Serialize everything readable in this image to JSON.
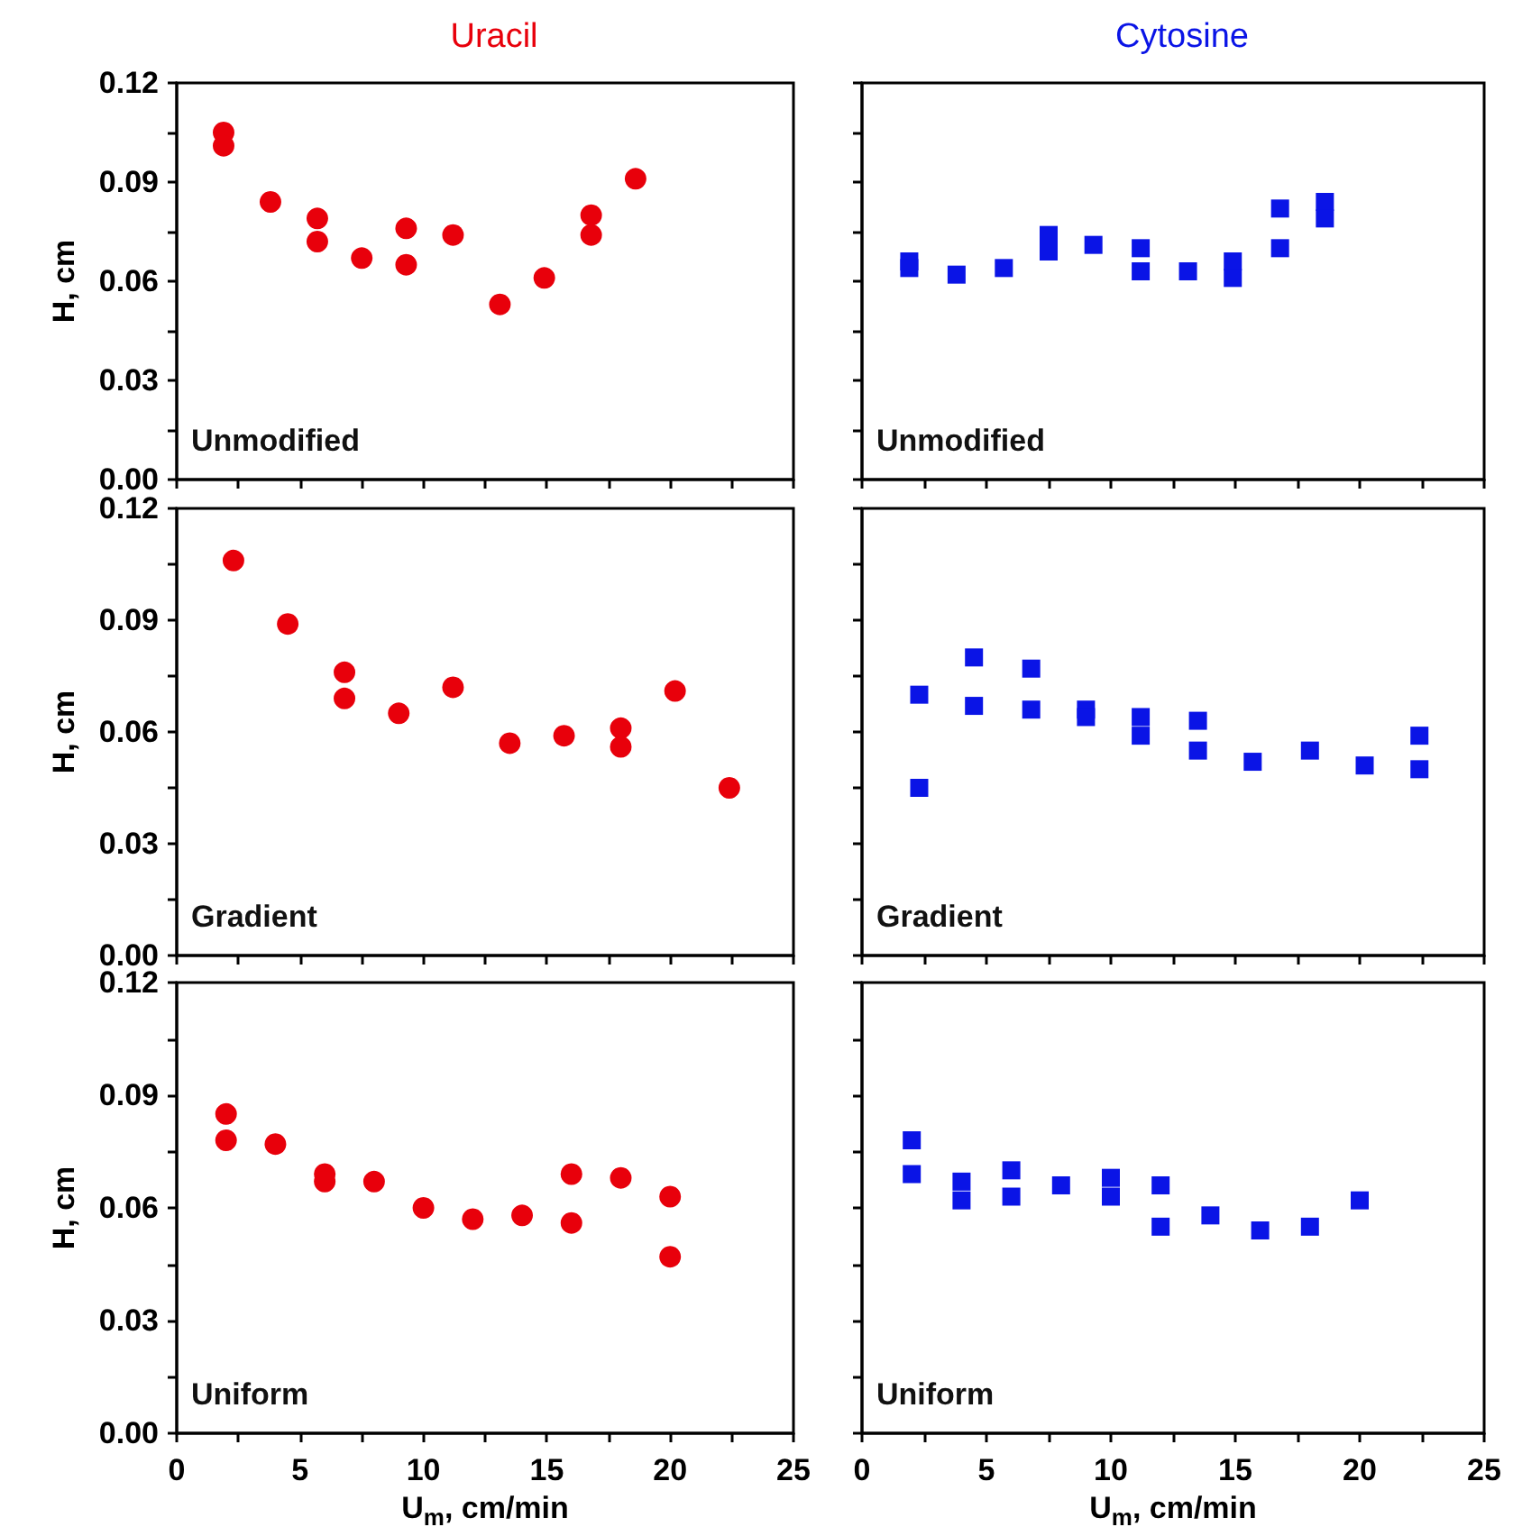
{
  "chart_data": [
    {
      "type": "scatter",
      "title": "Uracil",
      "ylabel": "H, cm",
      "annotations": [
        "Unmodified"
      ],
      "marker": "circle",
      "color": "#e8000b",
      "tick_labels": "y",
      "x": [
        1.9,
        1.9,
        3.8,
        5.7,
        5.7,
        7.5,
        9.3,
        9.3,
        11.2,
        13.1,
        14.9,
        16.8,
        16.8,
        18.6
      ],
      "values": [
        0.105,
        0.101,
        0.084,
        0.079,
        0.072,
        0.067,
        0.076,
        0.065,
        0.074,
        0.053,
        0.061,
        0.08,
        0.074,
        0.091
      ],
      "xlim": [
        0,
        25
      ],
      "ylim": [
        0,
        0.12
      ],
      "xticks": [
        {
          "value": 0,
          "label": null
        },
        {
          "value": 2.5,
          "label": null
        },
        {
          "value": 5,
          "label": null
        },
        {
          "value": 7.5,
          "label": null
        },
        {
          "value": 10,
          "label": null
        },
        {
          "value": 12.5,
          "label": null
        },
        {
          "value": 15,
          "label": null
        },
        {
          "value": 17.5,
          "label": null
        },
        {
          "value": 20,
          "label": null
        },
        {
          "value": 22.5,
          "label": null
        },
        {
          "value": 25,
          "label": null
        }
      ],
      "yticks": [
        {
          "value": 0,
          "label": "0.00"
        },
        {
          "value": 0.015,
          "label": null
        },
        {
          "value": 0.03,
          "label": "0.03"
        },
        {
          "value": 0.045,
          "label": null
        },
        {
          "value": 0.06,
          "label": "0.06"
        },
        {
          "value": 0.075,
          "label": null
        },
        {
          "value": 0.09,
          "label": "0.09"
        },
        {
          "value": 0.105,
          "label": null
        },
        {
          "value": 0.12,
          "label": "0.12"
        }
      ]
    },
    {
      "type": "scatter",
      "title": "Cytosine",
      "annotations": [
        "Unmodified"
      ],
      "marker": "square",
      "color": "#0a14e6",
      "tick_labels": false,
      "x": [
        1.9,
        1.9,
        3.8,
        5.7,
        7.5,
        7.5,
        9.3,
        11.2,
        11.2,
        13.1,
        14.9,
        14.9,
        16.8,
        16.8,
        18.6,
        18.6
      ],
      "values": [
        0.066,
        0.064,
        0.062,
        0.064,
        0.074,
        0.069,
        0.071,
        0.07,
        0.063,
        0.063,
        0.066,
        0.061,
        0.082,
        0.07,
        0.084,
        0.079
      ],
      "xlim": [
        0,
        25
      ],
      "ylim": [
        0,
        0.12
      ],
      "xticks": [
        {
          "value": 0,
          "label": null
        },
        {
          "value": 2.5,
          "label": null
        },
        {
          "value": 5,
          "label": null
        },
        {
          "value": 7.5,
          "label": null
        },
        {
          "value": 10,
          "label": null
        },
        {
          "value": 12.5,
          "label": null
        },
        {
          "value": 15,
          "label": null
        },
        {
          "value": 17.5,
          "label": null
        },
        {
          "value": 20,
          "label": null
        },
        {
          "value": 22.5,
          "label": null
        },
        {
          "value": 25,
          "label": null
        }
      ],
      "yticks": [
        {
          "value": 0,
          "label": null
        },
        {
          "value": 0.015,
          "label": null
        },
        {
          "value": 0.03,
          "label": null
        },
        {
          "value": 0.045,
          "label": null
        },
        {
          "value": 0.06,
          "label": null
        },
        {
          "value": 0.075,
          "label": null
        },
        {
          "value": 0.09,
          "label": null
        },
        {
          "value": 0.105,
          "label": null
        },
        {
          "value": 0.12,
          "label": null
        }
      ]
    },
    {
      "type": "scatter",
      "ylabel": "H, cm",
      "annotations": [
        "Gradient"
      ],
      "marker": "circle",
      "color": "#e8000b",
      "tick_labels": "y",
      "x": [
        2.3,
        4.5,
        6.8,
        6.8,
        9.0,
        11.2,
        13.5,
        15.7,
        18.0,
        18.0,
        20.2,
        22.4
      ],
      "values": [
        0.106,
        0.089,
        0.076,
        0.069,
        0.065,
        0.072,
        0.057,
        0.059,
        0.061,
        0.056,
        0.071,
        0.045
      ],
      "xlim": [
        0,
        25
      ],
      "ylim": [
        0,
        0.12
      ],
      "xticks": [
        {
          "value": 0,
          "label": null
        },
        {
          "value": 2.5,
          "label": null
        },
        {
          "value": 5,
          "label": null
        },
        {
          "value": 7.5,
          "label": null
        },
        {
          "value": 10,
          "label": null
        },
        {
          "value": 12.5,
          "label": null
        },
        {
          "value": 15,
          "label": null
        },
        {
          "value": 17.5,
          "label": null
        },
        {
          "value": 20,
          "label": null
        },
        {
          "value": 22.5,
          "label": null
        },
        {
          "value": 25,
          "label": null
        }
      ],
      "yticks": [
        {
          "value": 0,
          "label": "0.00"
        },
        {
          "value": 0.015,
          "label": null
        },
        {
          "value": 0.03,
          "label": "0.03"
        },
        {
          "value": 0.045,
          "label": null
        },
        {
          "value": 0.06,
          "label": "0.06"
        },
        {
          "value": 0.075,
          "label": null
        },
        {
          "value": 0.09,
          "label": "0.09"
        },
        {
          "value": 0.105,
          "label": null
        },
        {
          "value": 0.12,
          "label": "0.12"
        }
      ]
    },
    {
      "type": "scatter",
      "annotations": [
        "Gradient"
      ],
      "marker": "square",
      "color": "#0a14e6",
      "tick_labels": false,
      "x": [
        2.3,
        2.3,
        4.5,
        4.5,
        6.8,
        6.8,
        9.0,
        9.0,
        11.2,
        11.2,
        13.5,
        13.5,
        15.7,
        18.0,
        20.2,
        22.4,
        22.4
      ],
      "values": [
        0.07,
        0.045,
        0.08,
        0.067,
        0.077,
        0.066,
        0.066,
        0.064,
        0.064,
        0.059,
        0.063,
        0.055,
        0.052,
        0.055,
        0.051,
        0.059,
        0.05
      ],
      "xlim": [
        0,
        25
      ],
      "ylim": [
        0,
        0.12
      ],
      "xticks": [
        {
          "value": 0,
          "label": null
        },
        {
          "value": 2.5,
          "label": null
        },
        {
          "value": 5,
          "label": null
        },
        {
          "value": 7.5,
          "label": null
        },
        {
          "value": 10,
          "label": null
        },
        {
          "value": 12.5,
          "label": null
        },
        {
          "value": 15,
          "label": null
        },
        {
          "value": 17.5,
          "label": null
        },
        {
          "value": 20,
          "label": null
        },
        {
          "value": 22.5,
          "label": null
        },
        {
          "value": 25,
          "label": null
        }
      ],
      "yticks": [
        {
          "value": 0,
          "label": null
        },
        {
          "value": 0.015,
          "label": null
        },
        {
          "value": 0.03,
          "label": null
        },
        {
          "value": 0.045,
          "label": null
        },
        {
          "value": 0.06,
          "label": null
        },
        {
          "value": 0.075,
          "label": null
        },
        {
          "value": 0.09,
          "label": null
        },
        {
          "value": 0.105,
          "label": null
        },
        {
          "value": 0.12,
          "label": null
        }
      ]
    },
    {
      "type": "scatter",
      "xlabel": "U$_{m}$, cm/min",
      "ylabel": "H, cm",
      "annotations": [
        "Uniform"
      ],
      "marker": "circle",
      "color": "#e8000b",
      "x": [
        2,
        2,
        4,
        6,
        6,
        8,
        10,
        12,
        14,
        16,
        16,
        18,
        20,
        20
      ],
      "values": [
        0.085,
        0.078,
        0.077,
        0.069,
        0.067,
        0.067,
        0.06,
        0.057,
        0.058,
        0.069,
        0.056,
        0.068,
        0.063,
        0.047
      ],
      "xlim": [
        0,
        25
      ],
      "ylim": [
        0,
        0.12
      ],
      "xticks": [
        0,
        {
          "value": 2.5,
          "label": null
        },
        5,
        {
          "value": 7.5,
          "label": null
        },
        10,
        {
          "value": 12.5,
          "label": null
        },
        15,
        {
          "value": 17.5,
          "label": null
        },
        20,
        {
          "value": 22.5,
          "label": null
        },
        25
      ],
      "yticks": [
        {
          "value": 0,
          "label": "0.00"
        },
        {
          "value": 0.015,
          "label": null
        },
        {
          "value": 0.03,
          "label": "0.03"
        },
        {
          "value": 0.045,
          "label": null
        },
        {
          "value": 0.06,
          "label": "0.06"
        },
        {
          "value": 0.075,
          "label": null
        },
        {
          "value": 0.09,
          "label": "0.09"
        },
        {
          "value": 0.105,
          "label": null
        },
        {
          "value": 0.12,
          "label": "0.12"
        }
      ]
    },
    {
      "type": "scatter",
      "xlabel": "U$_{m}$, cm/min",
      "annotations": [
        "Uniform"
      ],
      "marker": "square",
      "color": "#0a14e6",
      "tick_labels": "x",
      "x": [
        2,
        2,
        4,
        4,
        6,
        6,
        8,
        10,
        10,
        12,
        12,
        14,
        16,
        18,
        20
      ],
      "values": [
        0.078,
        0.069,
        0.067,
        0.062,
        0.07,
        0.063,
        0.066,
        0.068,
        0.063,
        0.066,
        0.055,
        0.058,
        0.054,
        0.055,
        0.062
      ],
      "xlim": [
        0,
        25
      ],
      "ylim": [
        0,
        0.12
      ],
      "xticks": [
        0,
        {
          "value": 2.5,
          "label": null
        },
        5,
        {
          "value": 7.5,
          "label": null
        },
        10,
        {
          "value": 12.5,
          "label": null
        },
        15,
        {
          "value": 17.5,
          "label": null
        },
        20,
        {
          "value": 22.5,
          "label": null
        },
        25
      ],
      "yticks": [
        {
          "value": 0,
          "label": null
        },
        {
          "value": 0.015,
          "label": null
        },
        {
          "value": 0.03,
          "label": null
        },
        {
          "value": 0.045,
          "label": null
        },
        {
          "value": 0.06,
          "label": null
        },
        {
          "value": 0.075,
          "label": null
        },
        {
          "value": 0.09,
          "label": null
        },
        {
          "value": 0.105,
          "label": null
        },
        {
          "value": 0.12,
          "label": null
        }
      ]
    }
  ]
}
